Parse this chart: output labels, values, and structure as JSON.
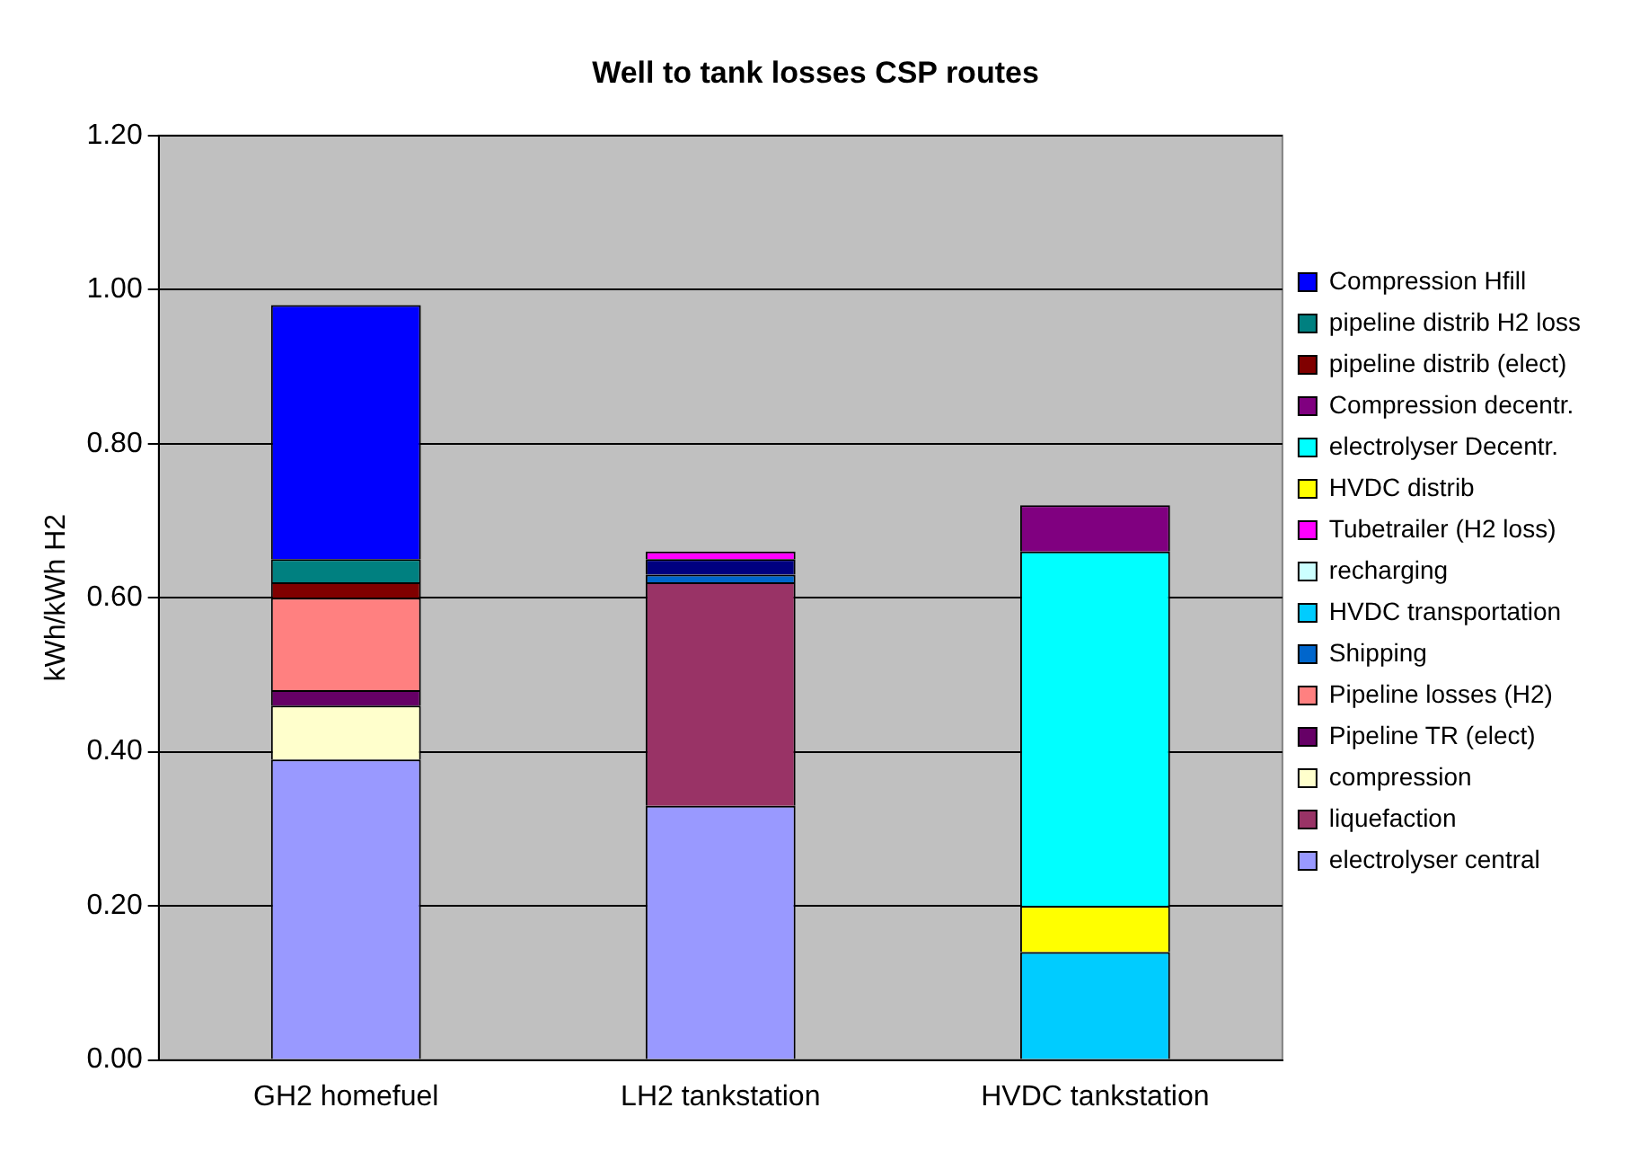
{
  "chart_data": {
    "type": "bar",
    "title": "Well to tank losses CSP routes",
    "ylabel": "kWh/kWh H2",
    "categories": [
      "GH2 homefuel",
      "LH2 tankstation",
      "HVDC tankstation"
    ],
    "stacked": true,
    "ylim": [
      0,
      1.2
    ],
    "yticks": [
      {
        "value": 0,
        "label": "0.00"
      },
      {
        "value": 0.2,
        "label": "0.20"
      },
      {
        "value": 0.4,
        "label": "0.40"
      },
      {
        "value": 0.6,
        "label": "0.60"
      },
      {
        "value": 0.8,
        "label": "0.80"
      },
      {
        "value": 1,
        "label": "1.00"
      },
      {
        "value": 1.2,
        "label": "1.20"
      }
    ],
    "grid": "y",
    "legend": "right",
    "series": [
      {
        "name": "electrolyser central",
        "color": "#9999ff",
        "values": [
          0.39,
          0.33,
          null
        ]
      },
      {
        "name": "liquefaction",
        "color": "#993366",
        "values": [
          null,
          0.29,
          null
        ]
      },
      {
        "name": "compression",
        "color": "#ffffcc",
        "values": [
          0.07,
          null,
          null
        ]
      },
      {
        "name": "Pipeline TR (elect)",
        "color": "#660066",
        "values": [
          0.02,
          null,
          null
        ]
      },
      {
        "name": "Pipeline losses (H2)",
        "color": "#ff8080",
        "values": [
          0.12,
          null,
          null
        ]
      },
      {
        "name": "Shipping",
        "color": "#0066cc",
        "values": [
          null,
          0.01,
          null
        ]
      },
      {
        "name": "HVDC transportation",
        "color": "#00ccff",
        "values": [
          null,
          null,
          0.14
        ]
      },
      {
        "name": "recharging",
        "color": "#ccffff",
        "values": [
          null,
          null,
          null
        ]
      },
      {
        "color": "#000080",
        "values": [
          null,
          0.02,
          null
        ]
      },
      {
        "name": "Tubetrailer (H2 loss)",
        "color": "#ff00ff",
        "values": [
          null,
          0.01,
          null
        ]
      },
      {
        "name": "HVDC distrib",
        "color": "#ffff00",
        "values": [
          null,
          null,
          0.06
        ]
      },
      {
        "name": "electrolyser Decentr.",
        "color": "#00ffff",
        "values": [
          null,
          null,
          0.46
        ]
      },
      {
        "name": "Compression decentr.",
        "color": "#800080",
        "values": [
          null,
          null,
          0.06
        ]
      },
      {
        "name": "pipeline distrib (elect)",
        "color": "#800000",
        "values": [
          0.02,
          null,
          null
        ]
      },
      {
        "name": "pipeline distrib H2 loss",
        "color": "#008080",
        "values": [
          0.03,
          null,
          null
        ]
      },
      {
        "name": "Compression Hfill",
        "color": "#0000ff",
        "values": [
          0.33,
          null,
          null
        ]
      }
    ]
  }
}
